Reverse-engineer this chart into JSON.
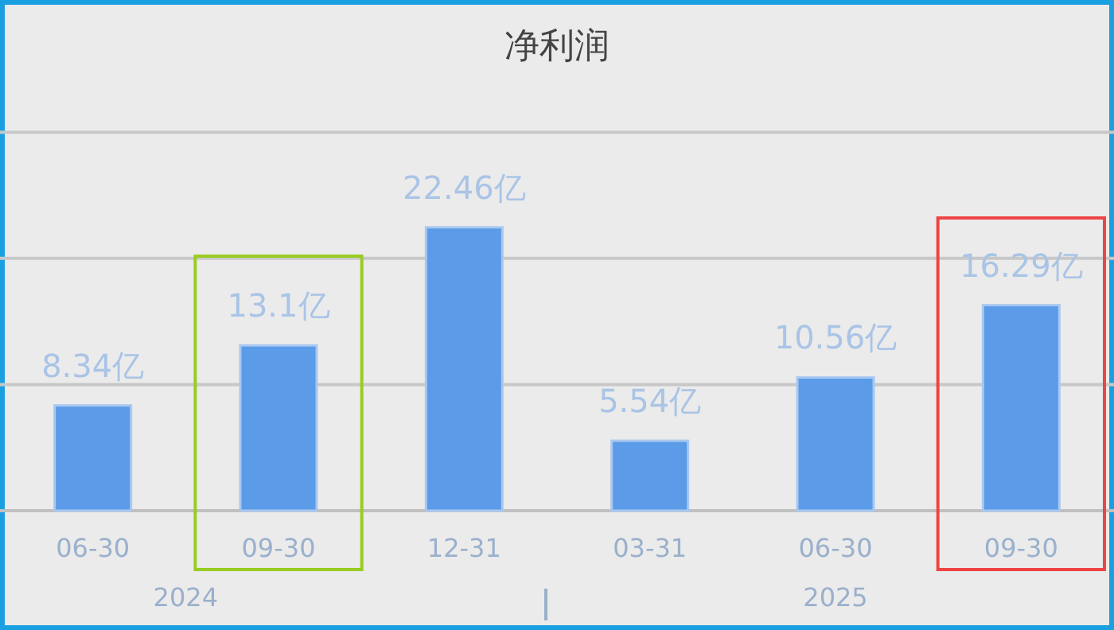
{
  "chart_data": {
    "type": "bar",
    "title": "净利润",
    "categories": [
      "06-30",
      "09-30",
      "12-31",
      "03-31",
      "06-30",
      "09-30"
    ],
    "values": [
      8.34,
      13.1,
      22.46,
      5.54,
      10.56,
      16.29
    ],
    "value_labels": [
      "8.34亿",
      "13.1亿",
      "22.46亿",
      "5.54亿",
      "10.56亿",
      "16.29亿"
    ],
    "color": "#5b9be8",
    "ref_lines": [
      {
        "axis": "y",
        "value": 10,
        "color": "#c8c8c8"
      },
      {
        "axis": "y",
        "value": 20,
        "color": "#c8c8c8"
      },
      {
        "axis": "y",
        "value": 30,
        "color": "#c8c8c8"
      }
    ],
    "tick_labels": "x",
    "annotations": [
      "2024",
      "2025"
    ]
  }
}
